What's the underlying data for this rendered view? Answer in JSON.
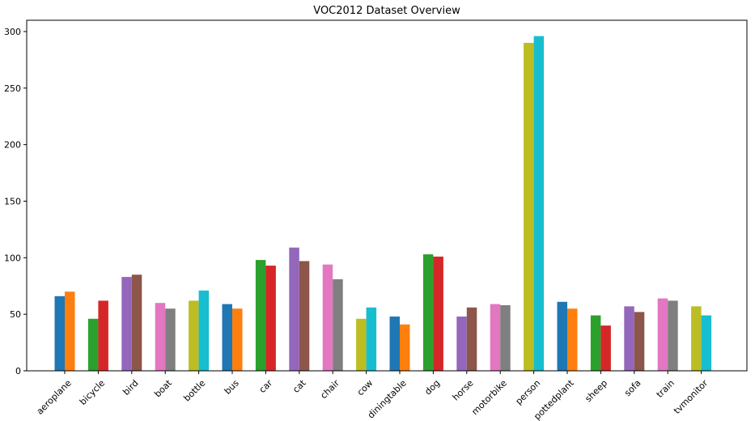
{
  "chart_data": {
    "type": "bar",
    "title": "VOC2012 Dataset Overview",
    "xlabel": "",
    "ylabel": "",
    "ylim": [
      0,
      310
    ],
    "yticks": [
      0,
      50,
      100,
      150,
      200,
      250,
      300
    ],
    "grid": false,
    "legend": "none",
    "categories": [
      "aeroplane",
      "bicycle",
      "bird",
      "boat",
      "bottle",
      "bus",
      "car",
      "cat",
      "chair",
      "cow",
      "diningtable",
      "dog",
      "horse",
      "motorbike",
      "person",
      "pottedplant",
      "sheep",
      "sofa",
      "train",
      "tvmonitor"
    ],
    "values_a": [
      66,
      46,
      83,
      60,
      62,
      59,
      98,
      109,
      94,
      46,
      48,
      103,
      48,
      59,
      290,
      61,
      49,
      57,
      64,
      57
    ],
    "values_b": [
      70,
      62,
      85,
      55,
      71,
      55,
      93,
      97,
      81,
      56,
      41,
      101,
      56,
      58,
      296,
      55,
      40,
      52,
      62,
      49
    ],
    "colors_a": [
      "#1f77b4",
      "#2ca02c",
      "#9467bd",
      "#e377c2",
      "#bcbd22",
      "#1f77b4",
      "#2ca02c",
      "#9467bd",
      "#e377c2",
      "#bcbd22",
      "#1f77b4",
      "#2ca02c",
      "#9467bd",
      "#e377c2",
      "#bcbd22",
      "#1f77b4",
      "#2ca02c",
      "#9467bd",
      "#e377c2",
      "#bcbd22"
    ],
    "colors_b": [
      "#ff7f0e",
      "#d62728",
      "#8c564b",
      "#7f7f7f",
      "#17becf",
      "#ff7f0e",
      "#d62728",
      "#8c564b",
      "#7f7f7f",
      "#17becf",
      "#ff7f0e",
      "#d62728",
      "#8c564b",
      "#7f7f7f",
      "#17becf",
      "#ff7f0e",
      "#d62728",
      "#8c564b",
      "#7f7f7f",
      "#17becf"
    ]
  }
}
